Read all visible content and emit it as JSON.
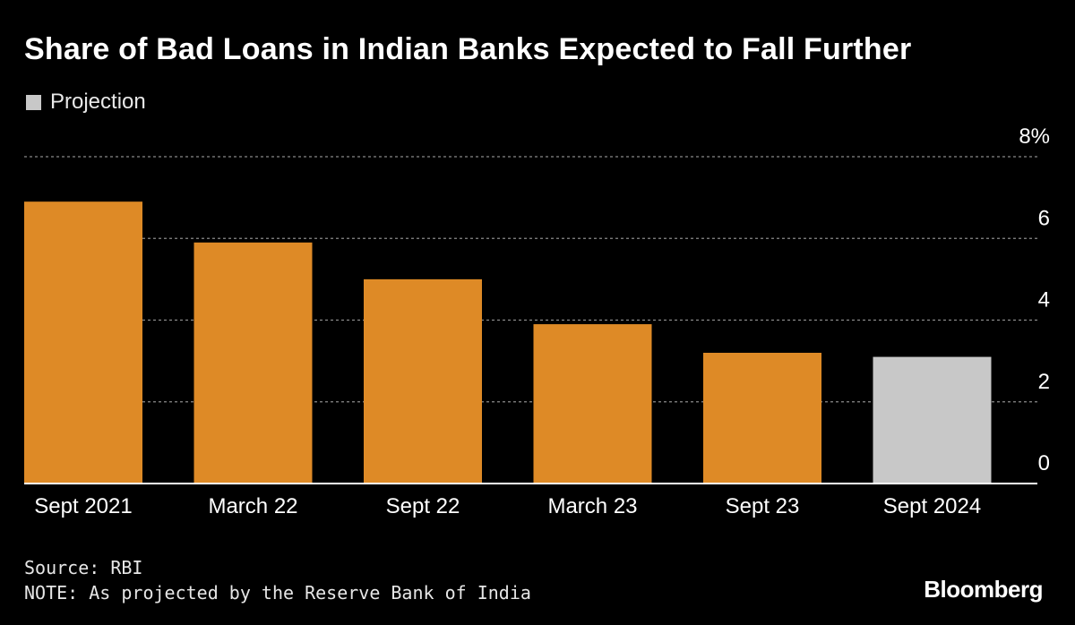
{
  "chart_data": {
    "type": "bar",
    "title": "Share of Bad Loans in Indian Banks Expected to Fall Further",
    "legend": {
      "entries": [
        {
          "label": "Projection",
          "color": "#c8c8c8"
        }
      ],
      "placement": "top-left"
    },
    "categories": [
      "Sept 2021",
      "March 22",
      "Sept 22",
      "March 23",
      "Sept 23",
      "Sept 2024"
    ],
    "values": [
      6.9,
      5.9,
      5.0,
      3.9,
      3.2,
      3.1
    ],
    "projected": [
      false,
      false,
      false,
      false,
      false,
      true
    ],
    "ylim": [
      0,
      8
    ],
    "y_ticks": [
      {
        "value": 0,
        "label": "0"
      },
      {
        "value": 2,
        "label": "2"
      },
      {
        "value": 4,
        "label": "4"
      },
      {
        "value": 6,
        "label": "6"
      },
      {
        "value": 8,
        "label": "8%"
      }
    ],
    "y_axis_side": "right",
    "grid": true,
    "colors": {
      "actual": "#de8a26",
      "projection": "#c8c8c8",
      "grid": "#8a8a8a",
      "baseline": "#ffffff"
    }
  },
  "footer": {
    "source": "Source: RBI",
    "note": "NOTE: As projected by the Reserve Bank of India",
    "brand": "Bloomberg"
  }
}
